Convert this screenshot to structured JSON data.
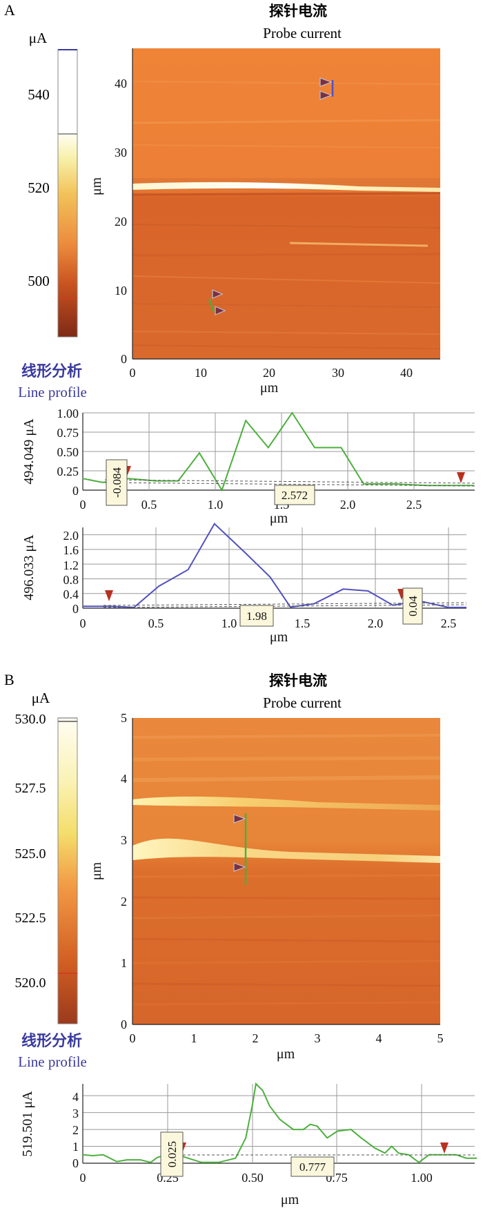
{
  "panel_a": {
    "letter": "A",
    "title_cn": "探针电流",
    "title_en": "Probe current",
    "colorbar": {
      "unit": "μA",
      "ticks": [
        "540",
        "520",
        "500"
      ],
      "colors": {
        "low": "#8a2c18",
        "mid": "#e8883a",
        "high": "#fffbe8"
      }
    },
    "map": {
      "xlabel": "μm",
      "ylabel": "μm",
      "xticks": [
        "0",
        "10",
        "20",
        "30",
        "40"
      ],
      "yticks": [
        "0",
        "10",
        "20",
        "30",
        "40"
      ]
    },
    "line_profile_label_cn": "线形分析",
    "line_profile_label_en": "Line profile",
    "profile1": {
      "ylabel": "494.049 μA",
      "xlabel": "μm",
      "yticks": [
        "0",
        "0.25",
        "0.50",
        "0.75",
        "1.00"
      ],
      "xticks": [
        "0",
        "0.5",
        "1.0",
        "1.5",
        "2.0",
        "2.5"
      ],
      "cursor_labels": [
        "-0.084",
        "2.572"
      ]
    },
    "profile2": {
      "ylabel": "496.033 μA",
      "xlabel": "μm",
      "yticks": [
        "0",
        "0.4",
        "0.8",
        "1.2",
        "1.6",
        "2.0"
      ],
      "xticks": [
        "0",
        "0.5",
        "1.0",
        "1.5",
        "2.0",
        "2.5"
      ],
      "cursor_labels": [
        "1.98",
        "0.04"
      ]
    }
  },
  "panel_b": {
    "letter": "B",
    "title_cn": "探针电流",
    "title_en": "Probe current",
    "colorbar": {
      "unit": "μA",
      "ticks": [
        "530.0",
        "527.5",
        "525.0",
        "522.5",
        "520.0"
      ]
    },
    "map": {
      "xlabel": "μm",
      "ylabel": "μm",
      "xticks": [
        "0",
        "1",
        "2",
        "3",
        "4",
        "5"
      ],
      "yticks": [
        "0",
        "1",
        "2",
        "3",
        "4",
        "5"
      ]
    },
    "line_profile_label_cn": "线形分析",
    "line_profile_label_en": "Line profile",
    "profile3": {
      "ylabel": "519.501 μA",
      "xlabel": "μm",
      "yticks": [
        "0",
        "1",
        "2",
        "3",
        "4"
      ],
      "xticks": [
        "0",
        "0.25",
        "0.50",
        "0.75",
        "1.00"
      ],
      "cursor_labels": [
        "0.025",
        "0.777"
      ]
    }
  },
  "chart_data": [
    {
      "type": "line",
      "x": [
        0,
        0.15,
        0.35,
        0.55,
        0.72,
        0.88,
        1.05,
        1.23,
        1.4,
        1.58,
        1.75,
        1.95,
        2.12,
        2.35,
        2.6,
        2.95
      ],
      "series": [
        {
          "values": [
            0.15,
            0.1,
            0.15,
            0.12,
            0.12,
            0.48,
            0.0,
            0.9,
            0.55,
            1.0,
            0.55,
            0.55,
            0.08,
            0.08,
            0.06,
            0.06
          ],
          "color": "#4caf3c"
        }
      ],
      "ylim": [
        0,
        1.0
      ],
      "xlim": [
        0,
        2.95
      ],
      "ylabel": "494.049 μA",
      "xlabel": "μm"
    },
    {
      "type": "line",
      "x": [
        0,
        0.2,
        0.35,
        0.52,
        0.72,
        0.9,
        1.1,
        1.28,
        1.42,
        1.58,
        1.78,
        1.95,
        2.12,
        2.3,
        2.5,
        2.62
      ],
      "series": [
        {
          "values": [
            0.05,
            0.05,
            0.02,
            0.6,
            1.05,
            2.3,
            1.55,
            0.85,
            0.03,
            0.12,
            0.52,
            0.47,
            0.08,
            0.2,
            0.02,
            0.02
          ],
          "color": "#5050c0"
        }
      ],
      "ylim": [
        0,
        2.2
      ],
      "xlim": [
        0,
        2.62
      ],
      "ylabel": "496.033 μA",
      "xlabel": "μm"
    },
    {
      "type": "line",
      "x": [
        0,
        0.03,
        0.06,
        0.1,
        0.13,
        0.17,
        0.2,
        0.22,
        0.25,
        0.28,
        0.31,
        0.35,
        0.4,
        0.45,
        0.48,
        0.5,
        0.51,
        0.53,
        0.55,
        0.58,
        0.62,
        0.65,
        0.67,
        0.69,
        0.72,
        0.75,
        0.79,
        0.82,
        0.86,
        0.89,
        0.91,
        0.93,
        0.96,
        0.99,
        1.02,
        1.06,
        1.1,
        1.13,
        1.16
      ],
      "series": [
        {
          "values": [
            0.5,
            0.45,
            0.5,
            0.1,
            0.2,
            0.2,
            0.05,
            0.35,
            0.5,
            0.5,
            0.3,
            0.05,
            0.05,
            0.3,
            1.5,
            3.5,
            4.7,
            4.3,
            3.4,
            2.6,
            2.0,
            2.0,
            2.3,
            2.2,
            1.5,
            1.9,
            2.0,
            1.5,
            0.9,
            0.6,
            1.0,
            0.6,
            0.5,
            0.05,
            0.5,
            0.5,
            0.5,
            0.3,
            0.3
          ],
          "color": "#4caf3c"
        }
      ],
      "ylim": [
        0,
        4.7
      ],
      "xlim": [
        0,
        1.16
      ],
      "ylabel": "519.501 μA",
      "xlabel": "μm"
    }
  ]
}
